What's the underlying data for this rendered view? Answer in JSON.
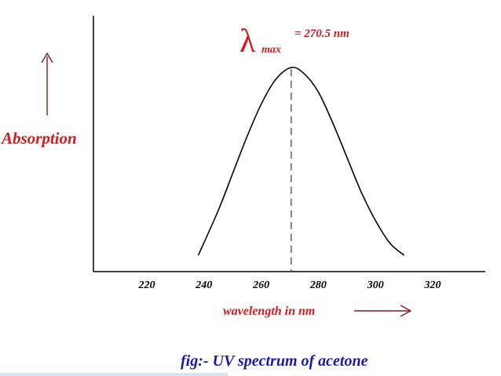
{
  "chart_data": {
    "type": "line",
    "title": "fig:- UV spectrum of acetone",
    "xlabel": "wavelength in nm",
    "ylabel": "Absorption",
    "x_ticks": [
      220,
      240,
      260,
      280,
      300,
      320
    ],
    "xlim": [
      200,
      340
    ],
    "ylim": [
      0,
      1.1
    ],
    "grid": false,
    "series": [
      {
        "x": [
          238,
          245,
          250,
          255,
          260,
          265,
          270.5,
          275,
          280,
          285,
          290,
          295,
          300,
          305,
          310
        ],
        "y": [
          0.08,
          0.3,
          0.48,
          0.66,
          0.82,
          0.94,
          1.0,
          0.97,
          0.88,
          0.73,
          0.56,
          0.39,
          0.25,
          0.14,
          0.08
        ]
      }
    ],
    "annotation": {
      "symbol": "λ",
      "subscript": "max",
      "text": "= 270.5 nm",
      "x": 270.5
    },
    "colors": {
      "label": "#d01c1c",
      "arrow": "#8b1a1a",
      "title": "#1a1aa8",
      "axis": "#000000",
      "curve": "#000000",
      "dashed": "#555555"
    }
  }
}
